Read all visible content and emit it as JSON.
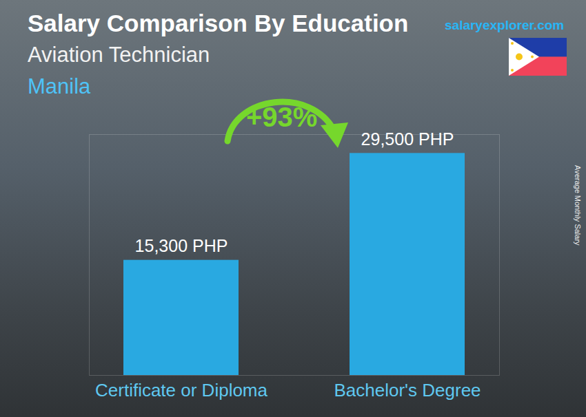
{
  "chart_data": {
    "type": "bar",
    "title": "Salary Comparison By Education",
    "subtitle": "Aviation Technician",
    "location": "Manila",
    "source": "salaryexplorer.com",
    "annotation": "+93%",
    "y_label": "Average Monthly Salary",
    "categories": [
      "Certificate or Diploma",
      "Bachelor's Degree"
    ],
    "values": [
      15300,
      29500
    ],
    "value_labels": [
      "15,300 PHP",
      "29,500 PHP"
    ],
    "data_labels": true,
    "color": "#29a9e1",
    "ylim": [
      0,
      32000
    ],
    "yticks": [],
    "grid": false,
    "tick_labels": "x"
  }
}
